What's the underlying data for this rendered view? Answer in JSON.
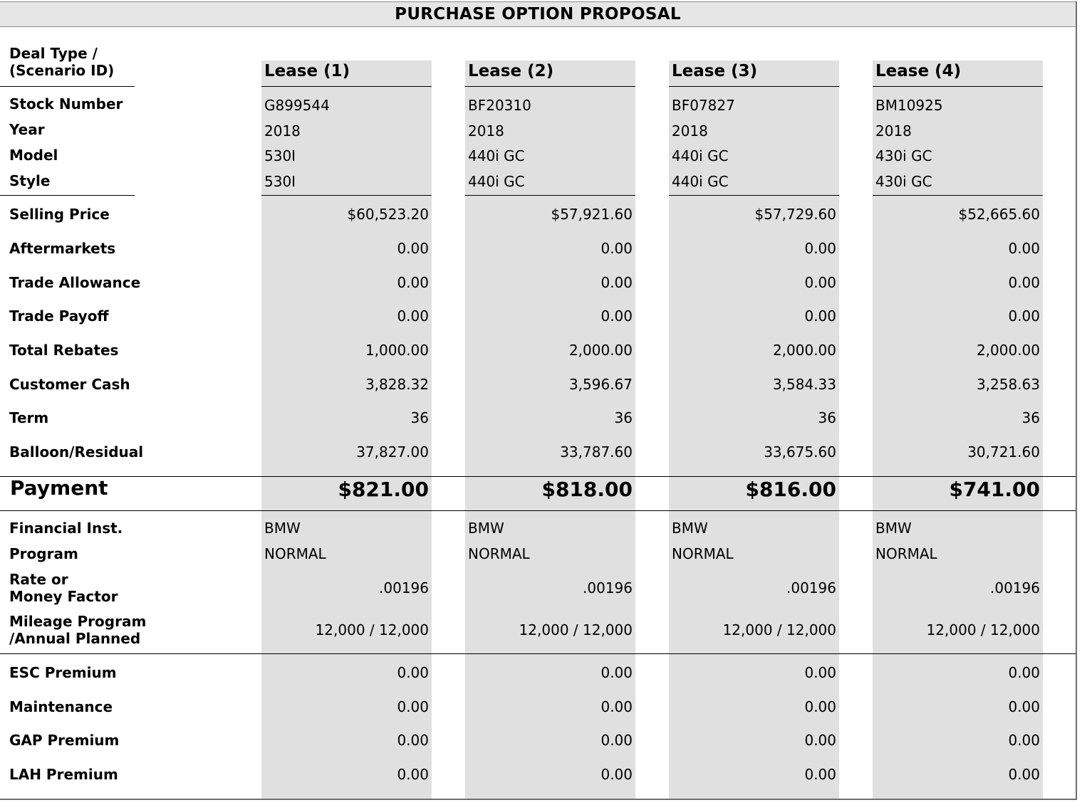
{
  "title": "PURCHASE OPTION PROPOSAL",
  "row_labels": {
    "deal_type_1": "Deal Type /",
    "deal_type_2": "(Scenario ID)",
    "stock_number": "Stock Number",
    "year": "Year",
    "model": "Model",
    "style": "Style",
    "selling_price": "Selling Price",
    "aftermarkets": "Aftermarkets",
    "trade_allowance": "Trade Allowance",
    "trade_payoff": "Trade Payoff",
    "total_rebates": "Total Rebates",
    "customer_cash": "Customer Cash",
    "term": "Term",
    "balloon_residual": "Balloon/Residual",
    "payment": "Payment",
    "financial_inst": "Financial Inst.",
    "program": "Program",
    "rate_1": "Rate or",
    "rate_2": "Money Factor",
    "mileage_1": "Mileage Program",
    "mileage_2": "/Annual Planned",
    "esc_premium": "ESC Premium",
    "maintenance": "Maintenance",
    "gap_premium": "GAP Premium",
    "lah_premium": "LAH Premium"
  },
  "scenarios": [
    {
      "deal_type": "Lease (1)",
      "stock_number": "G899544",
      "year": "2018",
      "model": "530I",
      "style": "530I",
      "selling_price": "$60,523.20",
      "aftermarkets": "0.00",
      "trade_allowance": "0.00",
      "trade_payoff": "0.00",
      "total_rebates": "1,000.00",
      "customer_cash": "3,828.32",
      "term": "36",
      "balloon_residual": "37,827.00",
      "payment": "$821.00",
      "financial_inst": "BMW",
      "program": "NORMAL",
      "rate": ".00196",
      "mileage": "12,000 / 12,000",
      "esc_premium": "0.00",
      "maintenance": "0.00",
      "gap_premium": "0.00",
      "lah_premium": "0.00"
    },
    {
      "deal_type": "Lease (2)",
      "stock_number": "BF20310",
      "year": "2018",
      "model": "440i GC",
      "style": "440i GC",
      "selling_price": "$57,921.60",
      "aftermarkets": "0.00",
      "trade_allowance": "0.00",
      "trade_payoff": "0.00",
      "total_rebates": "2,000.00",
      "customer_cash": "3,596.67",
      "term": "36",
      "balloon_residual": "33,787.60",
      "payment": "$818.00",
      "financial_inst": "BMW",
      "program": "NORMAL",
      "rate": ".00196",
      "mileage": "12,000 / 12,000",
      "esc_premium": "0.00",
      "maintenance": "0.00",
      "gap_premium": "0.00",
      "lah_premium": "0.00"
    },
    {
      "deal_type": "Lease (3)",
      "stock_number": "BF07827",
      "year": "2018",
      "model": "440i GC",
      "style": "440i GC",
      "selling_price": "$57,729.60",
      "aftermarkets": "0.00",
      "trade_allowance": "0.00",
      "trade_payoff": "0.00",
      "total_rebates": "2,000.00",
      "customer_cash": "3,584.33",
      "term": "36",
      "balloon_residual": "33,675.60",
      "payment": "$816.00",
      "financial_inst": "BMW",
      "program": "NORMAL",
      "rate": ".00196",
      "mileage": "12,000 / 12,000",
      "esc_premium": "0.00",
      "maintenance": "0.00",
      "gap_premium": "0.00",
      "lah_premium": "0.00"
    },
    {
      "deal_type": "Lease (4)",
      "stock_number": "BM10925",
      "year": "2018",
      "model": "430i GC",
      "style": "430i GC",
      "selling_price": "$52,665.60",
      "aftermarkets": "0.00",
      "trade_allowance": "0.00",
      "trade_payoff": "0.00",
      "total_rebates": "2,000.00",
      "customer_cash": "3,258.63",
      "term": "36",
      "balloon_residual": "30,721.60",
      "payment": "$741.00",
      "financial_inst": "BMW",
      "program": "NORMAL",
      "rate": ".00196",
      "mileage": "12,000 / 12,000",
      "esc_premium": "0.00",
      "maintenance": "0.00",
      "gap_premium": "0.00",
      "lah_premium": "0.00"
    }
  ]
}
